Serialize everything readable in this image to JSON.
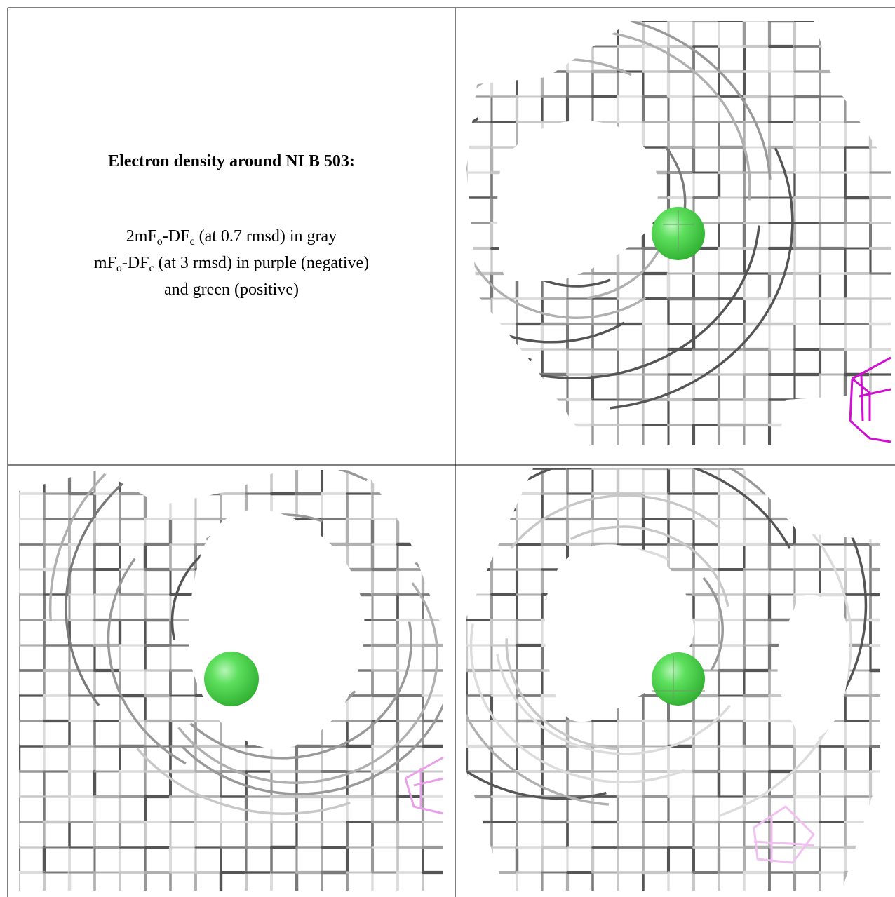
{
  "caption": {
    "title": "Electron density around NI B 503:",
    "lines": [
      [
        {
          "t": "2mF"
        },
        {
          "t": "o",
          "sub": true
        },
        {
          "t": "-DF"
        },
        {
          "t": "c",
          "sub": true
        },
        {
          "t": " (at 0.7 rmsd) in gray"
        }
      ],
      [
        {
          "t": "mF"
        },
        {
          "t": "o",
          "sub": true
        },
        {
          "t": "-DF"
        },
        {
          "t": "c",
          "sub": true
        },
        {
          "t": " (at 3 rmsd) in purple (negative)"
        }
      ],
      [
        {
          "t": "and green (positive)"
        }
      ]
    ]
  }
}
